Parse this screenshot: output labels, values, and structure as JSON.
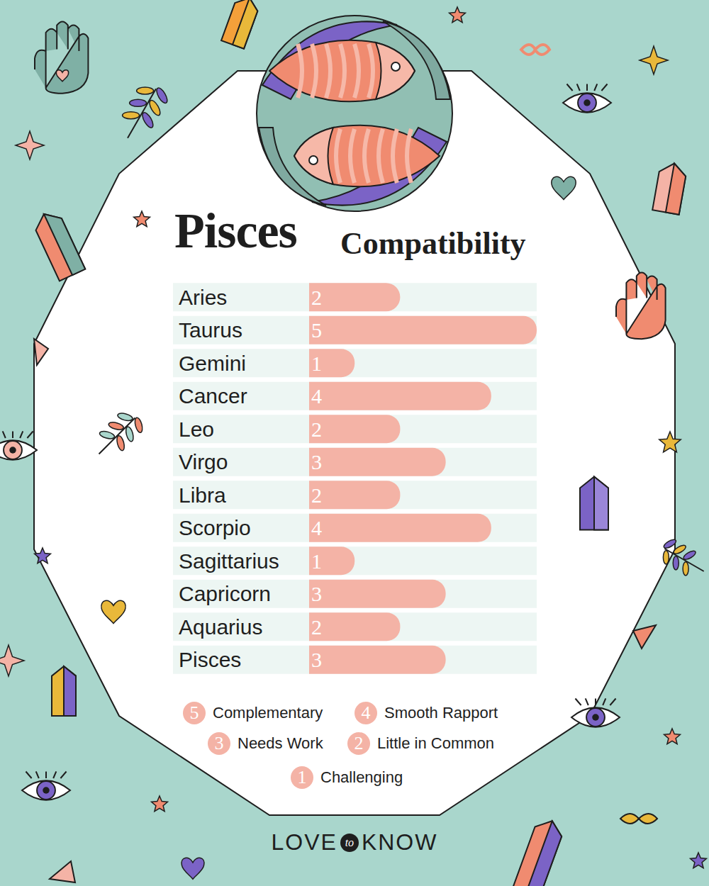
{
  "chart_data": {
    "type": "bar",
    "orientation": "horizontal",
    "title": "Pisces",
    "subtitle": "Compatibility",
    "categories": [
      "Aries",
      "Taurus",
      "Gemini",
      "Cancer",
      "Leo",
      "Virgo",
      "Libra",
      "Scorpio",
      "Sagittarius",
      "Capricorn",
      "Aquarius",
      "Pisces"
    ],
    "values": [
      2,
      5,
      1,
      4,
      2,
      3,
      2,
      4,
      1,
      3,
      2,
      3
    ],
    "color": "#f4b3a6",
    "xlim": [
      0,
      5
    ],
    "data_labels": true,
    "tick_labels": "y",
    "key": [
      {
        "value": 5,
        "label": "Complementary"
      },
      {
        "value": 4,
        "label": "Smooth Rapport"
      },
      {
        "value": 3,
        "label": "Needs Work"
      },
      {
        "value": 2,
        "label": "Little in Common"
      },
      {
        "value": 1,
        "label": "Challenging"
      }
    ],
    "brand": [
      "LOVE",
      "to",
      "KNOW"
    ]
  }
}
